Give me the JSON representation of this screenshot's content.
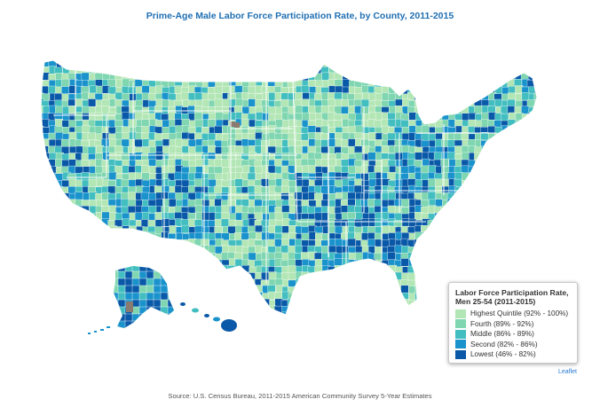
{
  "title": "Prime-Age Male Labor Force Participation Rate, by County, 2011-2015",
  "legend": {
    "title_line1": "Labor Force Participation Rate,",
    "title_line2": "Men 25-54 (2011-2015)",
    "items": [
      {
        "label": "Highest Quintile (92% - 100%)",
        "color": "#b3e6b5"
      },
      {
        "label": "Fourth (89% - 92%)",
        "color": "#7fd6b0"
      },
      {
        "label": "Middle (86% - 89%)",
        "color": "#43bec0"
      },
      {
        "label": "Second (82% - 86%)",
        "color": "#1a93cc"
      },
      {
        "label": "Lowest (46% - 82%)",
        "color": "#0a59a8"
      }
    ],
    "no_data_color": "#8a7a70"
  },
  "attribution": "Leaflet",
  "source": "Source: U.S. Census Bureau, 2011-2015 American Community Survey 5-Year Estimates"
}
